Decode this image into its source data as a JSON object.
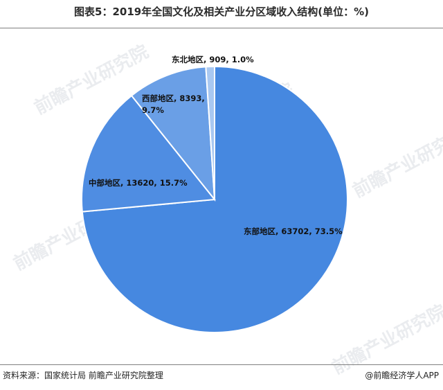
{
  "title": "图表5：2019年全国文化及相关产业分区域收入结构(单位：%)",
  "source_text": "资料来源：国家统计局 前瞻产业研究院整理",
  "brand_text": "@前瞻经济学人APP",
  "watermark_text": "前瞻产业研究院",
  "chart_data": {
    "type": "pie",
    "title": "图表5：2019年全国文化及相关产业分区域收入结构(单位：%)",
    "slices": [
      {
        "name": "东部地区",
        "value": 63702,
        "percent": 73.5,
        "label": "东部地区, 63702, 73.5%",
        "color": "#4688e0"
      },
      {
        "name": "中部地区",
        "value": 13620,
        "percent": 15.7,
        "label": "中部地区, 13620, 15.7%",
        "color": "#4f8de2"
      },
      {
        "name": "西部地区",
        "value": 8393,
        "percent": 9.7,
        "label_lines": [
          "西部地区, 8393,",
          "9.7%"
        ],
        "color": "#6a9fe6"
      },
      {
        "name": "东北地区",
        "value": 909,
        "percent": 1.0,
        "label": "东北地区, 909, 1.0%",
        "color": "#a9c8f1"
      }
    ]
  }
}
